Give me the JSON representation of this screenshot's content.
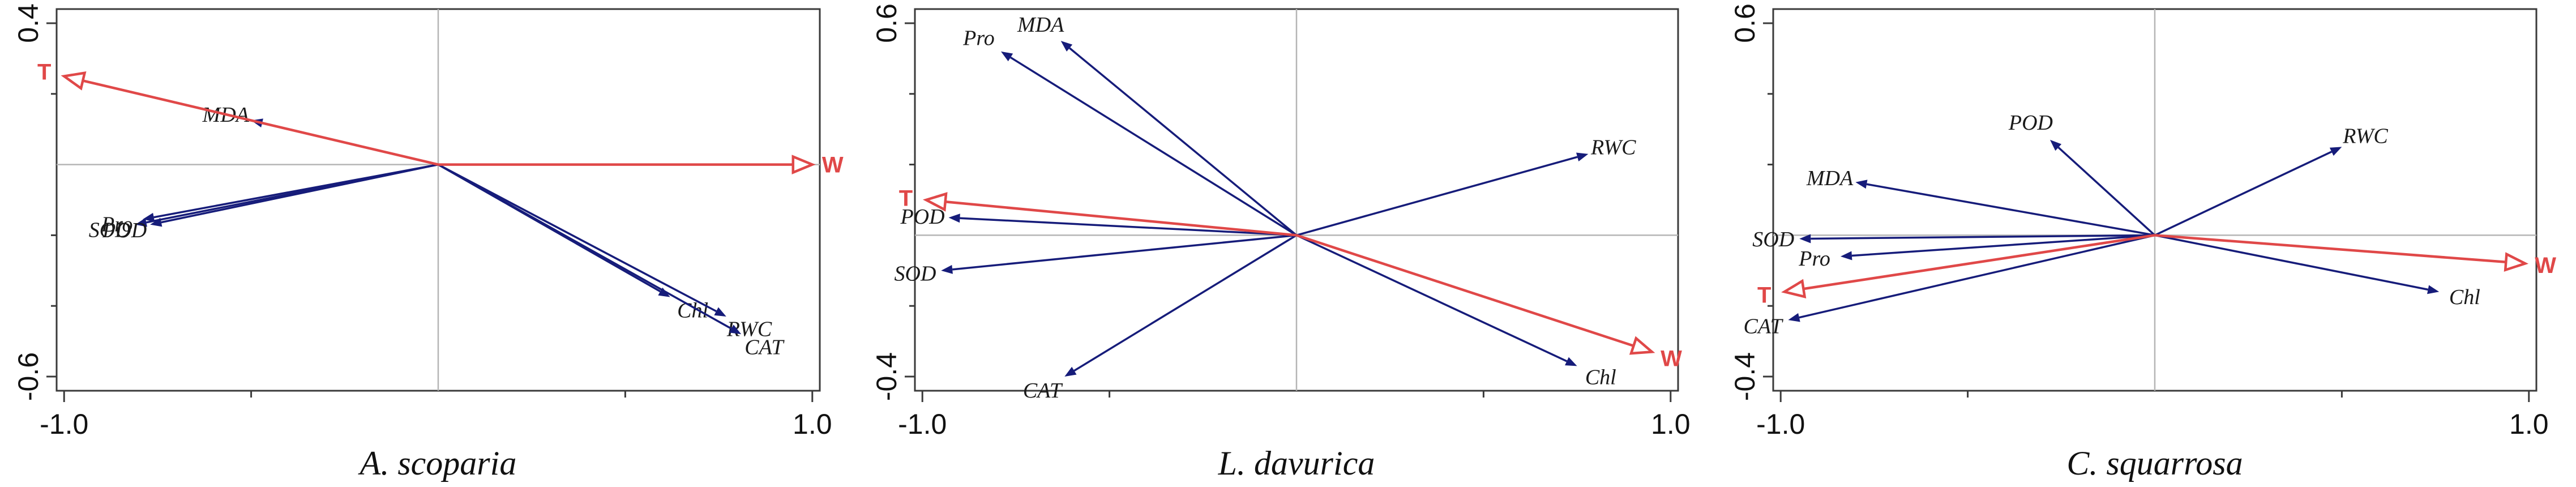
{
  "chart_data": [
    {
      "type": "biplot",
      "title": "A. scoparia",
      "xlim": [
        -1.02,
        1.02
      ],
      "ylim": [
        -0.64,
        0.44
      ],
      "x_ticks": [
        -1.0,
        1.0
      ],
      "x_tick_labels": [
        "-1.0",
        "1.0"
      ],
      "y_ticks": [
        -0.6,
        0.4
      ],
      "y_tick_labels": [
        "-0.6",
        "0.4"
      ],
      "y_minor_ticks": [
        -0.4,
        -0.2,
        0.2
      ],
      "x_minor_ticks": [
        -0.5,
        0.5
      ],
      "grid": false,
      "response_vectors": [
        {
          "name": "MDA",
          "x": -0.5,
          "y": 0.125
        },
        {
          "name": "Pro",
          "x": -0.79,
          "y": -0.155
        },
        {
          "name": "SOD",
          "x": -0.81,
          "y": -0.17
        },
        {
          "name": "POD",
          "x": -0.77,
          "y": -0.17
        },
        {
          "name": "Chl",
          "x": 0.62,
          "y": -0.375
        },
        {
          "name": "RWC",
          "x": 0.77,
          "y": -0.43
        },
        {
          "name": "CAT",
          "x": 0.81,
          "y": -0.48
        }
      ],
      "environment_vectors": [
        {
          "name": "T",
          "x": -1.0,
          "y": 0.25
        },
        {
          "name": "W",
          "x": 1.0,
          "y": 0.0
        }
      ]
    },
    {
      "type": "biplot",
      "title": "L. davurica",
      "xlim": [
        -1.02,
        1.02
      ],
      "ylim": [
        -0.44,
        0.64
      ],
      "x_ticks": [
        -1.0,
        1.0
      ],
      "x_tick_labels": [
        "-1.0",
        "1.0"
      ],
      "y_ticks": [
        -0.4,
        0.6
      ],
      "y_tick_labels": [
        "-0.4",
        "0.6"
      ],
      "y_minor_ticks": [
        -0.2,
        0.2,
        0.4
      ],
      "x_minor_ticks": [
        -0.5,
        0.5
      ],
      "grid": false,
      "response_vectors": [
        {
          "name": "Pro",
          "x": -0.79,
          "y": 0.52
        },
        {
          "name": "MDA",
          "x": -0.63,
          "y": 0.55
        },
        {
          "name": "RWC",
          "x": 0.78,
          "y": 0.23
        },
        {
          "name": "POD",
          "x": -0.93,
          "y": 0.05
        },
        {
          "name": "SOD",
          "x": -0.95,
          "y": -0.1
        },
        {
          "name": "CAT",
          "x": -0.62,
          "y": -0.4
        },
        {
          "name": "Chl",
          "x": 0.75,
          "y": -0.37
        }
      ],
      "environment_vectors": [
        {
          "name": "T",
          "x": -0.99,
          "y": 0.1
        },
        {
          "name": "W",
          "x": 0.95,
          "y": -0.33
        }
      ]
    },
    {
      "type": "biplot",
      "title": "C. squarrosa",
      "xlim": [
        -1.02,
        1.02
      ],
      "ylim": [
        -0.44,
        0.64
      ],
      "x_ticks": [
        -1.0,
        1.0
      ],
      "x_tick_labels": [
        "-1.0",
        "1.0"
      ],
      "y_ticks": [
        -0.4,
        0.6
      ],
      "y_tick_labels": [
        "-0.4",
        "0.6"
      ],
      "y_minor_ticks": [
        -0.2,
        0.2,
        0.4
      ],
      "x_minor_ticks": [
        -0.5,
        0.5
      ],
      "grid": false,
      "response_vectors": [
        {
          "name": "POD",
          "x": -0.28,
          "y": 0.27
        },
        {
          "name": "RWC",
          "x": 0.5,
          "y": 0.25
        },
        {
          "name": "MDA",
          "x": -0.8,
          "y": 0.15
        },
        {
          "name": "SOD",
          "x": -0.95,
          "y": -0.01
        },
        {
          "name": "Pro",
          "x": -0.84,
          "y": -0.06
        },
        {
          "name": "Chl",
          "x": 0.76,
          "y": -0.16
        },
        {
          "name": "CAT",
          "x": -0.98,
          "y": -0.24
        }
      ],
      "environment_vectors": [
        {
          "name": "T",
          "x": -0.99,
          "y": -0.16
        },
        {
          "name": "W",
          "x": 0.99,
          "y": -0.08
        }
      ]
    }
  ]
}
